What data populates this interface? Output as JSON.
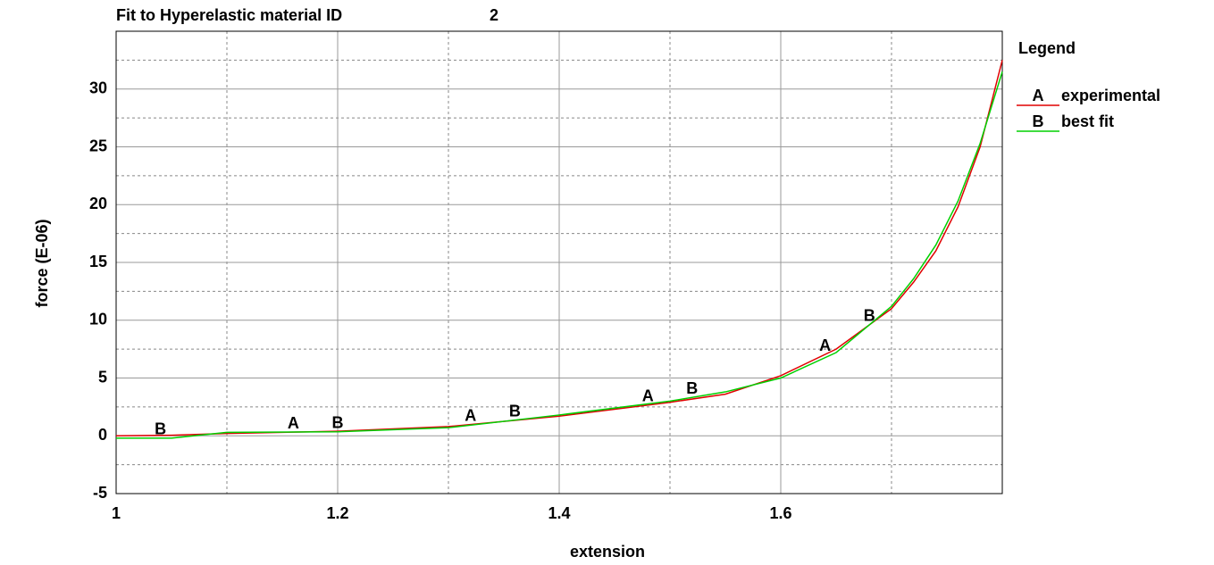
{
  "chart_data": {
    "type": "line",
    "title": "Fit to Hyperelastic material ID",
    "material_id": "2",
    "xlabel": "extension",
    "ylabel": "force (E-06)",
    "legend_title": "Legend",
    "x": [
      1,
      1.05,
      1.1,
      1.2,
      1.3,
      1.4,
      1.5,
      1.55,
      1.6,
      1.65,
      1.7,
      1.72,
      1.74,
      1.76,
      1.78,
      1.8
    ],
    "series": [
      {
        "name": "experimental",
        "marker": "A",
        "color": "#e00000",
        "values": [
          0,
          0.05,
          0.2,
          0.4,
          0.8,
          1.7,
          2.9,
          3.6,
          5.2,
          7.5,
          11,
          13.3,
          16,
          19.8,
          25,
          32.5
        ],
        "markers_x": [
          1.16,
          1.32,
          1.48,
          1.64
        ]
      },
      {
        "name": "best fit",
        "marker": "B",
        "color": "#00d000",
        "values": [
          -0.2,
          -0.2,
          0.3,
          0.35,
          0.7,
          1.8,
          3.0,
          3.8,
          5.0,
          7.2,
          11.2,
          13.6,
          16.5,
          20.3,
          25.3,
          31.5
        ],
        "markers_x": [
          1.04,
          1.2,
          1.36,
          1.52,
          1.68
        ]
      }
    ],
    "xlim": [
      1,
      1.8
    ],
    "xticks": [
      1,
      1.2,
      1.4,
      1.6
    ],
    "xminor": [
      1.1,
      1.3,
      1.5,
      1.7
    ],
    "ylim": [
      -5,
      35
    ],
    "yticks": [
      -5,
      0,
      5,
      10,
      15,
      20,
      25,
      30
    ],
    "yminor": [
      -2.5,
      2.5,
      7.5,
      12.5,
      17.5,
      22.5,
      27.5,
      32.5
    ],
    "grid": true,
    "legend": "right"
  }
}
